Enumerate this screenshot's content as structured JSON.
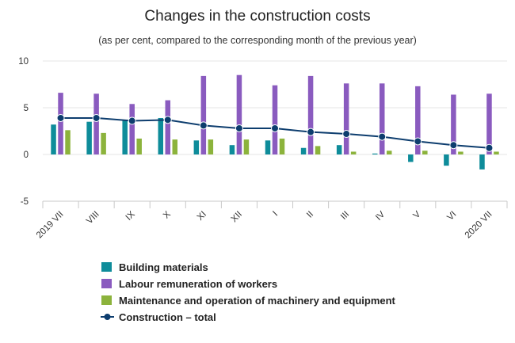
{
  "chart_data": {
    "type": "bar",
    "title": "Changes in the construction costs",
    "subtitle": "(as per cent, compared to the corresponding month of the previous year)",
    "categories": [
      "2019 VII",
      "VIII",
      "IX",
      "X",
      "XI",
      "XII",
      "I",
      "II",
      "III",
      "IV",
      "V",
      "VI",
      "2020 VII"
    ],
    "ylim": [
      -5,
      10
    ],
    "yticks": [
      -5,
      0,
      5,
      10
    ],
    "grid": true,
    "legend_position": "bottom",
    "series": [
      {
        "name": "Building materials",
        "type": "bar",
        "color": "#0e8c9a",
        "values": [
          3.2,
          3.5,
          3.6,
          3.9,
          1.5,
          1.0,
          1.5,
          0.7,
          1.0,
          0.1,
          -0.8,
          -1.2,
          -1.6
        ]
      },
      {
        "name": "Labour remuneration of workers",
        "type": "bar",
        "color": "#8a5bbf",
        "values": [
          6.6,
          6.5,
          5.4,
          5.8,
          8.4,
          8.5,
          7.4,
          8.4,
          7.6,
          7.6,
          7.3,
          6.4,
          6.5
        ]
      },
      {
        "name": "Maintenance and operation of machinery and equipment",
        "type": "bar",
        "color": "#8cb33c",
        "values": [
          2.6,
          2.3,
          1.7,
          1.6,
          1.6,
          1.6,
          1.7,
          0.9,
          0.3,
          0.4,
          0.4,
          0.3,
          0.3
        ]
      },
      {
        "name": "Construction – total",
        "type": "line",
        "color": "#0d3d6e",
        "values": [
          3.9,
          3.9,
          3.6,
          3.7,
          3.1,
          2.8,
          2.8,
          2.4,
          2.2,
          1.9,
          1.4,
          1.0,
          0.7
        ]
      }
    ]
  }
}
